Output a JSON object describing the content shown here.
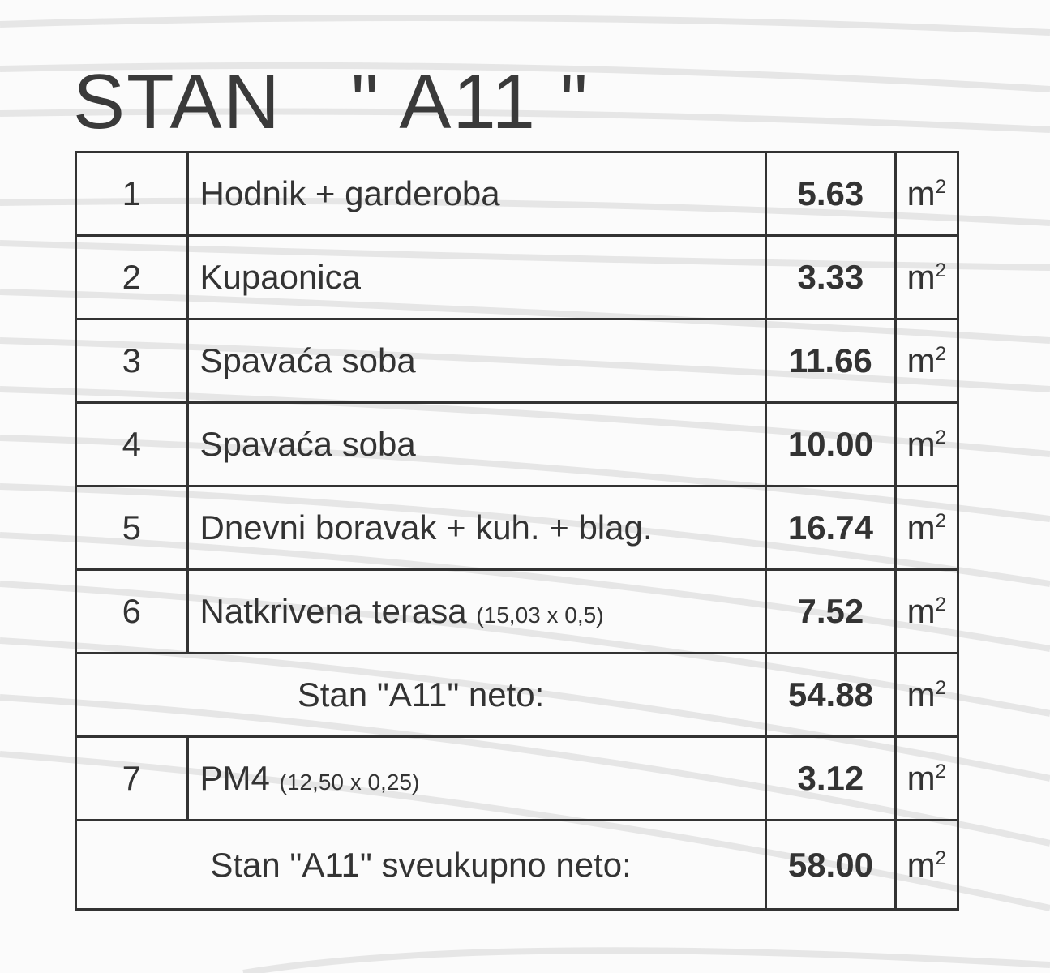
{
  "title": "STAN   \" A11 \"",
  "unit": "m",
  "unit_exp": "2",
  "rows": [
    {
      "num": "1",
      "name": "Hodnik + garderoba",
      "note": "",
      "value": "5.63"
    },
    {
      "num": "2",
      "name": "Kupaonica",
      "note": "",
      "value": "3.33"
    },
    {
      "num": "3",
      "name": "Spavaća soba",
      "note": "",
      "value": "11.66"
    },
    {
      "num": "4",
      "name": "Spavaća soba",
      "note": "",
      "value": "10.00"
    },
    {
      "num": "5",
      "name": "Dnevni boravak + kuh. + blag.",
      "note": "",
      "value": "16.74"
    },
    {
      "num": "6",
      "name": "Natkrivena terasa ",
      "note": "(15,03 x 0,5)",
      "value": "7.52"
    }
  ],
  "subtotal": {
    "label": "Stan \"A11\" neto:",
    "value": "54.88"
  },
  "extra": {
    "num": "7",
    "name": "PM4 ",
    "note": "(12,50 x 0,25)",
    "value": "3.12"
  },
  "total": {
    "label": "Stan \"A11\" sveukupno neto:",
    "value": "58.00"
  }
}
